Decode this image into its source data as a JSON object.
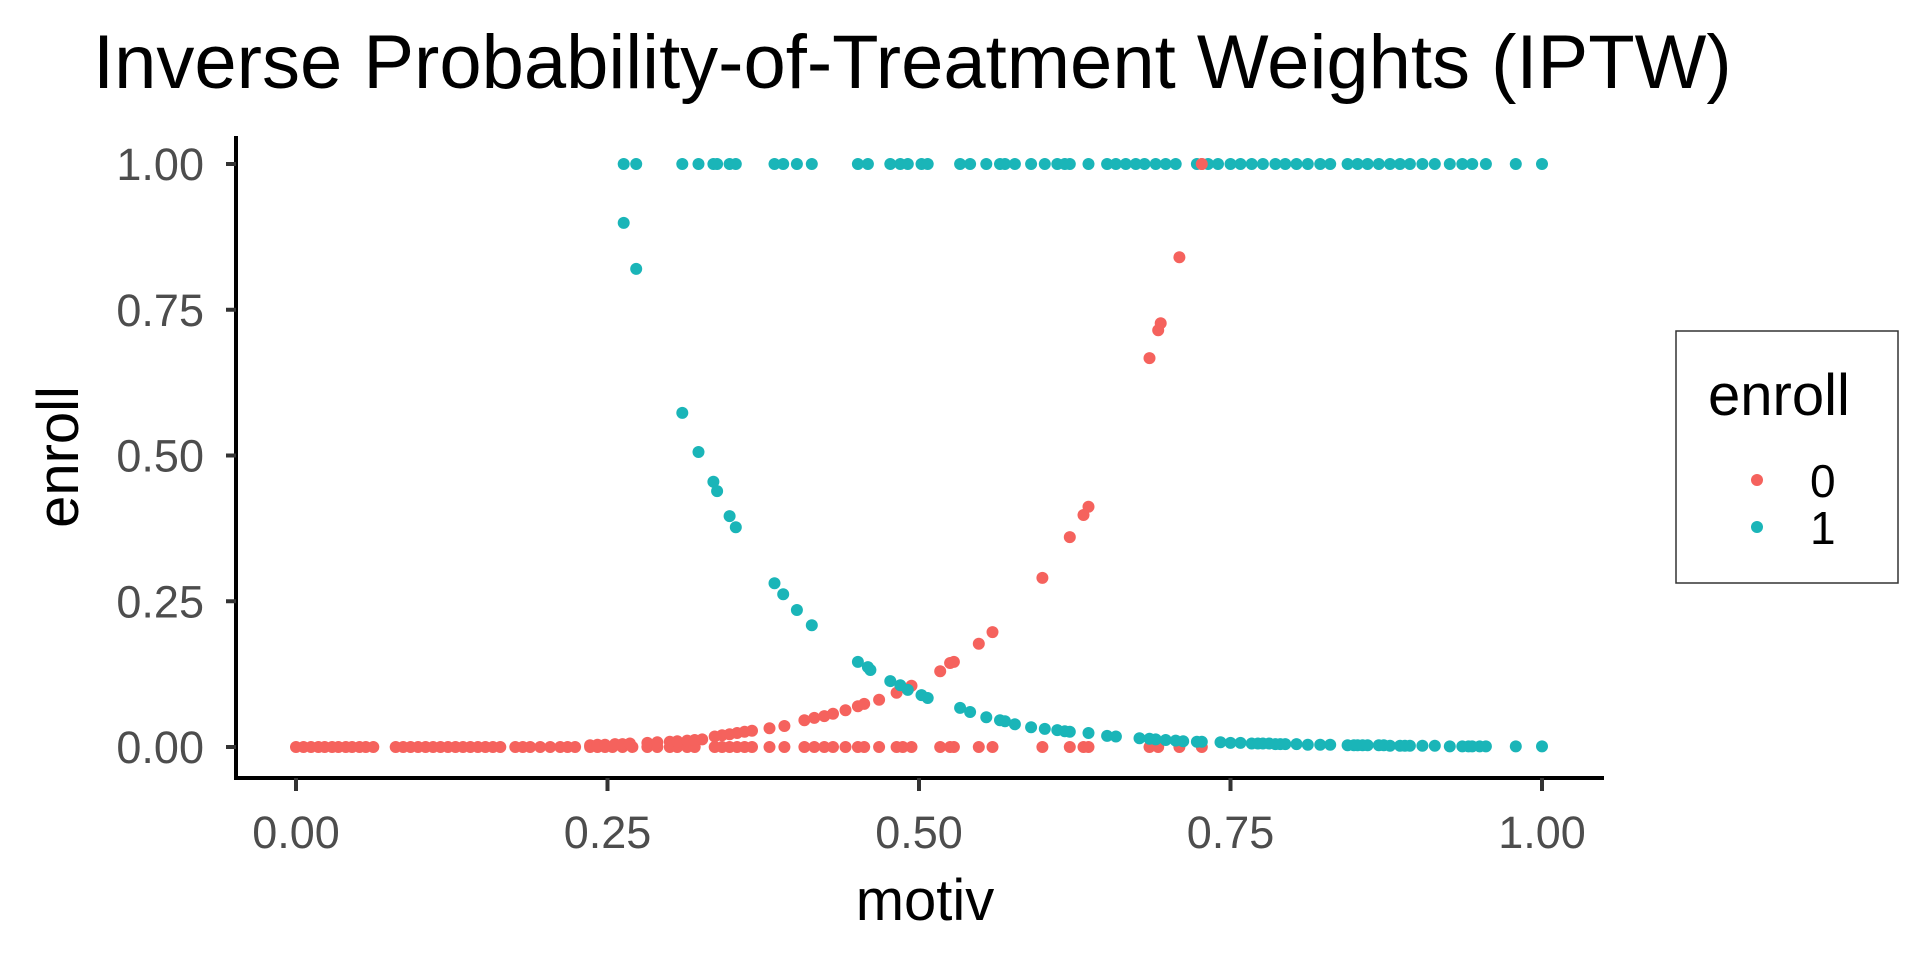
{
  "chart_data": {
    "type": "scatter",
    "title": "Inverse Probability-of-Treatment Weights (IPTW)",
    "xlabel": "motiv",
    "ylabel": "enroll",
    "xlim": [
      0,
      1
    ],
    "ylim": [
      0,
      1
    ],
    "x_ticks": [
      0,
      0.25,
      0.5,
      0.75,
      1
    ],
    "x_tick_labels": [
      "0.00",
      "0.25",
      "0.50",
      "0.75",
      "1.00"
    ],
    "y_ticks": [
      0,
      0.25,
      0.5,
      0.75,
      1
    ],
    "y_tick_labels": [
      "0.00",
      "0.25",
      "0.50",
      "0.75",
      "1.00"
    ],
    "grid": false,
    "legend": {
      "title": "enroll",
      "placement": "right",
      "entries": [
        {
          "label": "0",
          "color": "#F8766D"
        },
        {
          "label": "1",
          "color": "#00BFC4"
        }
      ]
    },
    "series": [
      {
        "name": "0",
        "color": "#F5625D",
        "points": [
          [
            0.0,
            0
          ],
          [
            0.006,
            0
          ],
          [
            0.012,
            0
          ],
          [
            0.018,
            0
          ],
          [
            0.023,
            0
          ],
          [
            0.029,
            0
          ],
          [
            0.034,
            0
          ],
          [
            0.04,
            0
          ],
          [
            0.045,
            0
          ],
          [
            0.051,
            0
          ],
          [
            0.056,
            0
          ],
          [
            0.062,
            0
          ],
          [
            0.08,
            0
          ],
          [
            0.086,
            0
          ],
          [
            0.092,
            0
          ],
          [
            0.098,
            0
          ],
          [
            0.104,
            0
          ],
          [
            0.11,
            0
          ],
          [
            0.116,
            0
          ],
          [
            0.122,
            0
          ],
          [
            0.128,
            0
          ],
          [
            0.134,
            0
          ],
          [
            0.14,
            0
          ],
          [
            0.146,
            0
          ],
          [
            0.152,
            0
          ],
          [
            0.158,
            0
          ],
          [
            0.164,
            0
          ],
          [
            0.176,
            0
          ],
          [
            0.182,
            0
          ],
          [
            0.188,
            0
          ],
          [
            0.196,
            0
          ],
          [
            0.204,
            0
          ],
          [
            0.212,
            0
          ],
          [
            0.218,
            0
          ],
          [
            0.224,
            0
          ],
          [
            0.236,
            0
          ],
          [
            0.242,
            0
          ],
          [
            0.248,
            0
          ],
          [
            0.254,
            0
          ],
          [
            0.262,
            0
          ],
          [
            0.27,
            0
          ],
          [
            0.282,
            0
          ],
          [
            0.29,
            0
          ],
          [
            0.3,
            0
          ],
          [
            0.306,
            0
          ],
          [
            0.314,
            0
          ],
          [
            0.32,
            0
          ],
          [
            0.236,
            0.003
          ],
          [
            0.242,
            0.004
          ],
          [
            0.248,
            0.004
          ],
          [
            0.256,
            0.005
          ],
          [
            0.262,
            0.005
          ],
          [
            0.268,
            0.006
          ],
          [
            0.282,
            0.007
          ],
          [
            0.29,
            0.008
          ],
          [
            0.3,
            0.009
          ],
          [
            0.306,
            0.01
          ],
          [
            0.314,
            0.011
          ],
          [
            0.32,
            0.012
          ],
          [
            0.326,
            0.013
          ],
          [
            0.336,
            0
          ],
          [
            0.342,
            0
          ],
          [
            0.348,
            0
          ],
          [
            0.354,
            0
          ],
          [
            0.36,
            0
          ],
          [
            0.366,
            0
          ],
          [
            0.38,
            0
          ],
          [
            0.392,
            0
          ],
          [
            0.336,
            0.018
          ],
          [
            0.342,
            0.02
          ],
          [
            0.348,
            0.022
          ],
          [
            0.354,
            0.024
          ],
          [
            0.36,
            0.026
          ],
          [
            0.366,
            0.028
          ],
          [
            0.38,
            0.032
          ],
          [
            0.392,
            0.036
          ],
          [
            0.408,
            0
          ],
          [
            0.416,
            0
          ],
          [
            0.424,
            0
          ],
          [
            0.431,
            0
          ],
          [
            0.441,
            0
          ],
          [
            0.451,
            0
          ],
          [
            0.456,
            0
          ],
          [
            0.468,
            0
          ],
          [
            0.482,
            0
          ],
          [
            0.487,
            0
          ],
          [
            0.494,
            0
          ],
          [
            0.408,
            0.046
          ],
          [
            0.416,
            0.05
          ],
          [
            0.424,
            0.053
          ],
          [
            0.431,
            0.057
          ],
          [
            0.441,
            0.063
          ],
          [
            0.451,
            0.07
          ],
          [
            0.456,
            0.074
          ],
          [
            0.468,
            0.081
          ],
          [
            0.482,
            0.093
          ],
          [
            0.494,
            0.105
          ],
          [
            0.517,
            0
          ],
          [
            0.525,
            0
          ],
          [
            0.528,
            0
          ],
          [
            0.548,
            0
          ],
          [
            0.559,
            0
          ],
          [
            0.517,
            0.13
          ],
          [
            0.525,
            0.144
          ],
          [
            0.528,
            0.146
          ],
          [
            0.548,
            0.177
          ],
          [
            0.559,
            0.197
          ],
          [
            0.599,
            0
          ],
          [
            0.621,
            0
          ],
          [
            0.632,
            0
          ],
          [
            0.636,
            0
          ],
          [
            0.599,
            0.29
          ],
          [
            0.621,
            0.36
          ],
          [
            0.632,
            0.398
          ],
          [
            0.636,
            0.412
          ],
          [
            0.685,
            0
          ],
          [
            0.692,
            0
          ],
          [
            0.709,
            0
          ],
          [
            0.727,
            0
          ],
          [
            0.685,
            0.667
          ],
          [
            0.692,
            0.715
          ],
          [
            0.694,
            0.727
          ],
          [
            0.709,
            0.84
          ],
          [
            0.727,
            1.0
          ]
        ]
      },
      {
        "name": "1",
        "color": "#1AB5B8",
        "points": [
          [
            0.263,
            1
          ],
          [
            0.273,
            1
          ],
          [
            0.31,
            1
          ],
          [
            0.323,
            1
          ],
          [
            0.335,
            1
          ],
          [
            0.338,
            1
          ],
          [
            0.348,
            1
          ],
          [
            0.353,
            1
          ],
          [
            0.384,
            1
          ],
          [
            0.391,
            1
          ],
          [
            0.402,
            1
          ],
          [
            0.414,
            1
          ],
          [
            0.451,
            1
          ],
          [
            0.459,
            1
          ],
          [
            0.477,
            1
          ],
          [
            0.485,
            1
          ],
          [
            0.491,
            1
          ],
          [
            0.502,
            1
          ],
          [
            0.507,
            1
          ],
          [
            0.533,
            1
          ],
          [
            0.541,
            1
          ],
          [
            0.554,
            1
          ],
          [
            0.565,
            1
          ],
          [
            0.569,
            1
          ],
          [
            0.577,
            1
          ],
          [
            0.59,
            1
          ],
          [
            0.601,
            1
          ],
          [
            0.611,
            1
          ],
          [
            0.617,
            1
          ],
          [
            0.621,
            1
          ],
          [
            0.636,
            1
          ],
          [
            0.651,
            1
          ],
          [
            0.658,
            1
          ],
          [
            0.666,
            1
          ],
          [
            0.674,
            1
          ],
          [
            0.681,
            1
          ],
          [
            0.69,
            1
          ],
          [
            0.698,
            1
          ],
          [
            0.706,
            1
          ],
          [
            0.723,
            1
          ],
          [
            0.732,
            1
          ],
          [
            0.74,
            1
          ],
          [
            0.75,
            1
          ],
          [
            0.758,
            1
          ],
          [
            0.767,
            1
          ],
          [
            0.776,
            1
          ],
          [
            0.786,
            1
          ],
          [
            0.794,
            1
          ],
          [
            0.803,
            1
          ],
          [
            0.812,
            1
          ],
          [
            0.822,
            1
          ],
          [
            0.83,
            1
          ],
          [
            0.844,
            1
          ],
          [
            0.852,
            1
          ],
          [
            0.86,
            1
          ],
          [
            0.869,
            1
          ],
          [
            0.878,
            1
          ],
          [
            0.886,
            1
          ],
          [
            0.894,
            1
          ],
          [
            0.904,
            1
          ],
          [
            0.914,
            1
          ],
          [
            0.926,
            1
          ],
          [
            0.936,
            1
          ],
          [
            0.944,
            1
          ],
          [
            0.955,
            1
          ],
          [
            0.979,
            1
          ],
          [
            1.0,
            1
          ],
          [
            0.263,
            0.899
          ],
          [
            0.273,
            0.82
          ],
          [
            0.31,
            0.573
          ],
          [
            0.323,
            0.506
          ],
          [
            0.335,
            0.455
          ],
          [
            0.338,
            0.439
          ],
          [
            0.348,
            0.396
          ],
          [
            0.353,
            0.377
          ],
          [
            0.384,
            0.281
          ],
          [
            0.391,
            0.262
          ],
          [
            0.402,
            0.235
          ],
          [
            0.414,
            0.209
          ],
          [
            0.451,
            0.146
          ],
          [
            0.459,
            0.137
          ],
          [
            0.461,
            0.132
          ],
          [
            0.477,
            0.113
          ],
          [
            0.485,
            0.106
          ],
          [
            0.491,
            0.098
          ],
          [
            0.502,
            0.089
          ],
          [
            0.507,
            0.084
          ],
          [
            0.533,
            0.067
          ],
          [
            0.541,
            0.06
          ],
          [
            0.554,
            0.051
          ],
          [
            0.565,
            0.046
          ],
          [
            0.569,
            0.044
          ],
          [
            0.577,
            0.039
          ],
          [
            0.59,
            0.034
          ],
          [
            0.601,
            0.031
          ],
          [
            0.611,
            0.029
          ],
          [
            0.617,
            0.027
          ],
          [
            0.621,
            0.026
          ],
          [
            0.636,
            0.024
          ],
          [
            0.651,
            0.019
          ],
          [
            0.658,
            0.018
          ],
          [
            0.677,
            0.015
          ],
          [
            0.685,
            0.014
          ],
          [
            0.69,
            0.013
          ],
          [
            0.698,
            0.012
          ],
          [
            0.706,
            0.011
          ],
          [
            0.712,
            0.01
          ],
          [
            0.723,
            0.009
          ],
          [
            0.727,
            0.009
          ],
          [
            0.742,
            0.008
          ],
          [
            0.75,
            0.007
          ],
          [
            0.758,
            0.007
          ],
          [
            0.767,
            0.006
          ],
          [
            0.772,
            0.006
          ],
          [
            0.776,
            0.006
          ],
          [
            0.781,
            0.006
          ],
          [
            0.786,
            0.005
          ],
          [
            0.79,
            0.005
          ],
          [
            0.794,
            0.005
          ],
          [
            0.803,
            0.005
          ],
          [
            0.812,
            0.004
          ],
          [
            0.822,
            0.004
          ],
          [
            0.83,
            0.004
          ],
          [
            0.844,
            0.003
          ],
          [
            0.849,
            0.003
          ],
          [
            0.852,
            0.003
          ],
          [
            0.856,
            0.003
          ],
          [
            0.86,
            0.003
          ],
          [
            0.869,
            0.003
          ],
          [
            0.873,
            0.003
          ],
          [
            0.878,
            0.002
          ],
          [
            0.886,
            0.002
          ],
          [
            0.89,
            0.002
          ],
          [
            0.894,
            0.002
          ],
          [
            0.904,
            0.002
          ],
          [
            0.914,
            0.002
          ],
          [
            0.926,
            0.001
          ],
          [
            0.936,
            0.001
          ],
          [
            0.941,
            0.001
          ],
          [
            0.944,
            0.001
          ],
          [
            0.95,
            0.001
          ],
          [
            0.955,
            0.001
          ],
          [
            0.979,
            0.001
          ],
          [
            1.0,
            0.001
          ]
        ]
      }
    ]
  }
}
